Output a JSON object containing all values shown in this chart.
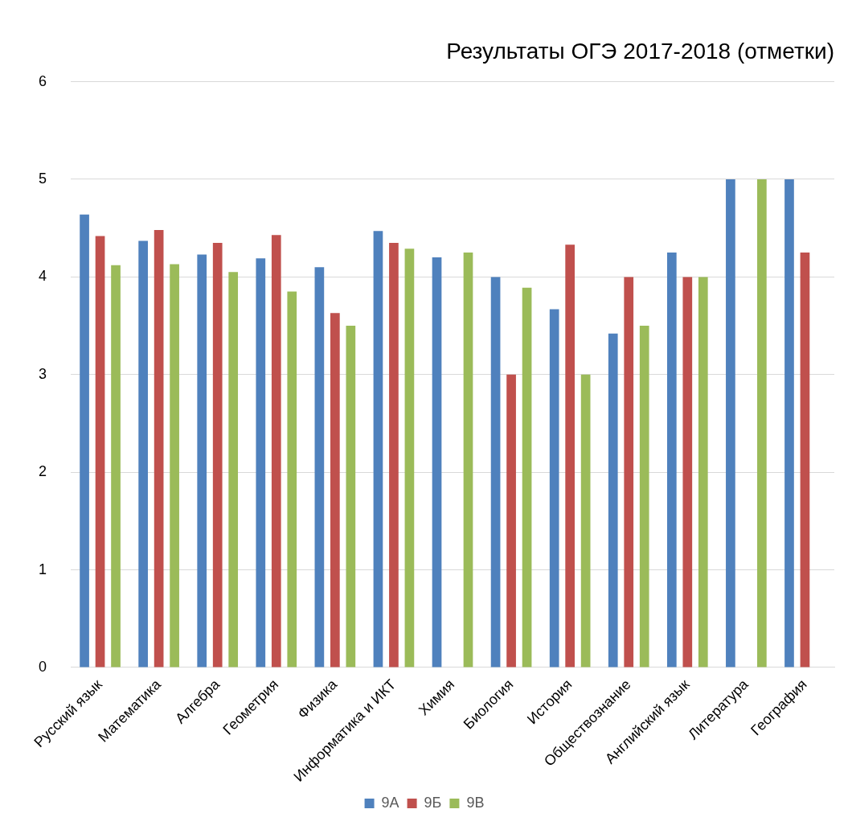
{
  "chart_data": {
    "type": "bar",
    "title": "Результаты ОГЭ 2017-2018 (отметки)",
    "categories": [
      "Русский язык",
      "Математика",
      "Алгебра",
      "Геометрия",
      "Физика",
      "Информатика и ИКТ",
      "Химия",
      "Биология",
      "История",
      "Обществознание",
      "Английский язык",
      "Литература",
      "География"
    ],
    "series": [
      {
        "name": "9А",
        "color": "#4f81bd",
        "values": [
          4.64,
          4.37,
          4.23,
          4.19,
          4.1,
          4.47,
          4.2,
          4.0,
          3.67,
          3.42,
          4.25,
          5,
          5
        ]
      },
      {
        "name": "9Б",
        "color": "#c0504d",
        "values": [
          4.42,
          4.48,
          4.35,
          4.43,
          3.63,
          4.35,
          null,
          3.0,
          4.33,
          4.0,
          4.0,
          null,
          4.25
        ]
      },
      {
        "name": "9В",
        "color": "#9bbb59",
        "values": [
          4.12,
          4.13,
          4.05,
          3.85,
          3.5,
          4.29,
          4.25,
          3.89,
          3.0,
          3.5,
          4.0,
          5,
          null
        ]
      }
    ],
    "ylim": [
      0,
      6
    ],
    "yticks": [
      0,
      1,
      2,
      3,
      4,
      5,
      6
    ],
    "grid": "y",
    "legend": "bottom"
  }
}
